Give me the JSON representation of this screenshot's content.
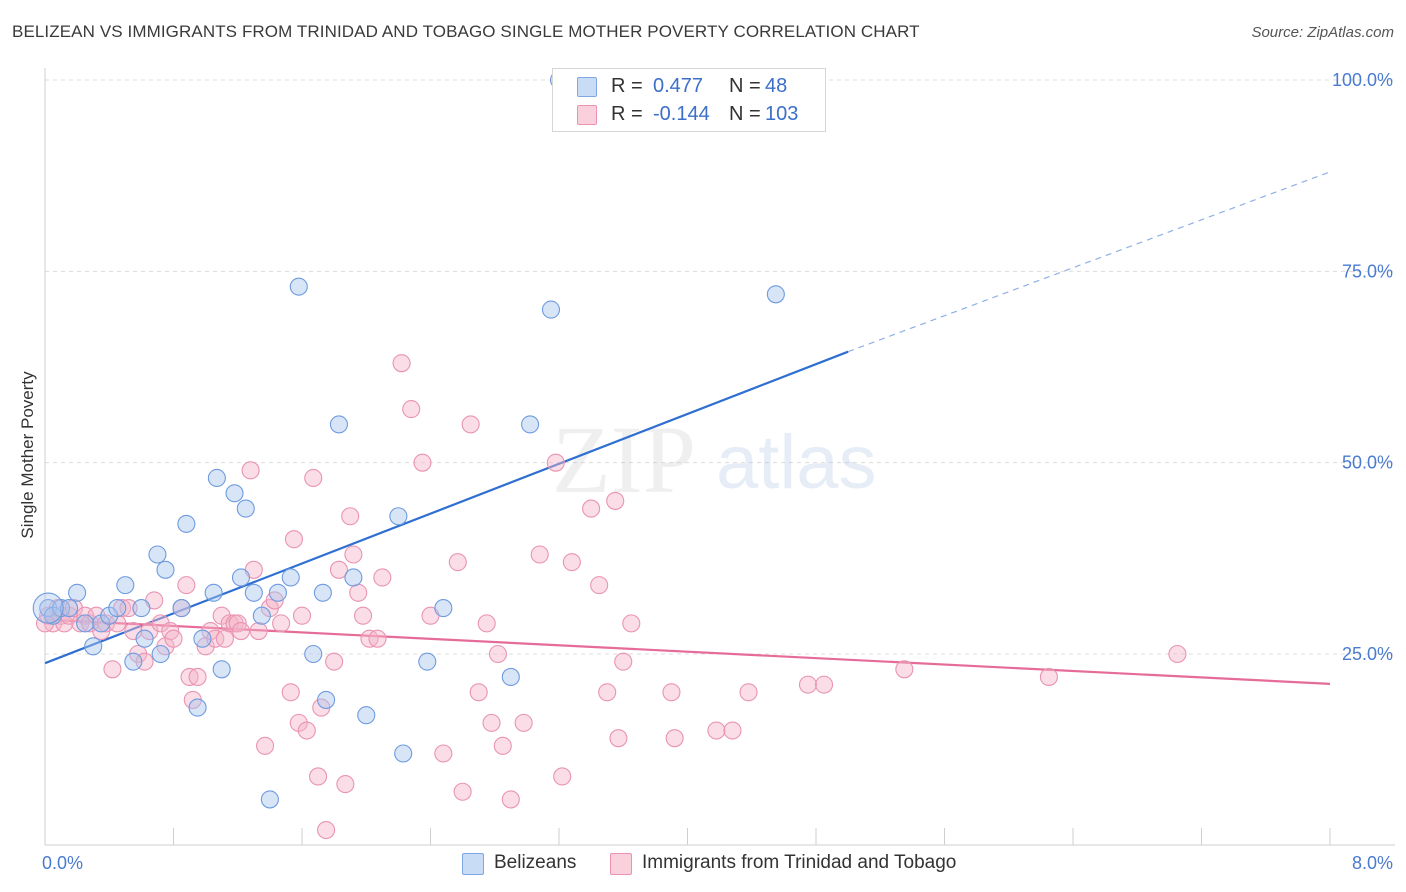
{
  "title": "BELIZEAN VS IMMIGRANTS FROM TRINIDAD AND TOBAGO SINGLE MOTHER POVERTY CORRELATION CHART",
  "source": "Source: ZipAtlas.com",
  "watermark": {
    "zip": "ZIP",
    "atlas": "atlas"
  },
  "legend": {
    "rows": [
      {
        "r_label": "R =",
        "r_value": "0.477",
        "n_label": "N =",
        "n_value": "48",
        "color": "#a9c6ee"
      },
      {
        "r_label": "R =",
        "r_value": "-0.144",
        "n_label": "N =",
        "n_value": "103",
        "color": "#f5b3c8"
      }
    ]
  },
  "bottom_legend": [
    {
      "label": "Belizeans",
      "color": "#a9c6ee"
    },
    {
      "label": "Immigrants from Trinidad and Tobago",
      "color": "#f5b3c8"
    }
  ],
  "chart_data": {
    "type": "scatter",
    "title": "BELIZEAN VS IMMIGRANTS FROM TRINIDAD AND TOBAGO SINGLE MOTHER POVERTY CORRELATION CHART",
    "xlabel": "",
    "ylabel": "Single Mother Poverty",
    "xlim": [
      0,
      8
    ],
    "ylim": [
      0,
      100
    ],
    "x_tick_labels": [
      "0.0%",
      "8.0%"
    ],
    "y_tick_labels": [
      "25.0%",
      "50.0%",
      "75.0%",
      "100.0%"
    ],
    "y_ticks": [
      25,
      50,
      75,
      100
    ],
    "grid": true,
    "legend_position": "top-center",
    "series": [
      {
        "name": "Belizeans",
        "color": "#6fa0e0",
        "fill": "#a9c6ee",
        "trend": {
          "x": [
            0,
            5.0
          ],
          "y": [
            23.8,
            64.5
          ],
          "dashed_to": [
            8,
            88
          ]
        },
        "points": [
          [
            0.02,
            31
          ],
          [
            0.05,
            30
          ],
          [
            0.1,
            31
          ],
          [
            0.15,
            31
          ],
          [
            0.2,
            33
          ],
          [
            0.25,
            29
          ],
          [
            0.3,
            26
          ],
          [
            0.35,
            29
          ],
          [
            0.4,
            30
          ],
          [
            0.45,
            31
          ],
          [
            0.5,
            34
          ],
          [
            0.55,
            24
          ],
          [
            0.6,
            31
          ],
          [
            0.62,
            27
          ],
          [
            0.7,
            38
          ],
          [
            0.72,
            25
          ],
          [
            0.75,
            36
          ],
          [
            0.85,
            31
          ],
          [
            0.88,
            42
          ],
          [
            0.95,
            18
          ],
          [
            0.98,
            27
          ],
          [
            1.05,
            33
          ],
          [
            1.07,
            48
          ],
          [
            1.1,
            23
          ],
          [
            1.18,
            46
          ],
          [
            1.22,
            35
          ],
          [
            1.25,
            44
          ],
          [
            1.3,
            33
          ],
          [
            1.35,
            30
          ],
          [
            1.4,
            6
          ],
          [
            1.45,
            33
          ],
          [
            1.53,
            35
          ],
          [
            1.58,
            73
          ],
          [
            1.67,
            25
          ],
          [
            1.73,
            33
          ],
          [
            1.75,
            19
          ],
          [
            1.83,
            55
          ],
          [
            1.92,
            35
          ],
          [
            2.0,
            17
          ],
          [
            2.2,
            43
          ],
          [
            2.23,
            12
          ],
          [
            2.38,
            24
          ],
          [
            2.48,
            31
          ],
          [
            2.9,
            22
          ],
          [
            3.02,
            55
          ],
          [
            3.15,
            70
          ],
          [
            4.55,
            72
          ],
          [
            3.2,
            100
          ]
        ]
      },
      {
        "name": "Immigrants from Trinidad and Tobago",
        "color": "#e97fa3",
        "fill": "#f5b3c8",
        "trend": {
          "x": [
            0,
            8
          ],
          "y": [
            29.5,
            21.1
          ]
        },
        "points": [
          [
            0.02,
            30
          ],
          [
            0.05,
            29
          ],
          [
            0.08,
            31
          ],
          [
            0.1,
            30
          ],
          [
            0.12,
            29
          ],
          [
            0.15,
            30
          ],
          [
            0.18,
            31
          ],
          [
            0.22,
            29
          ],
          [
            0.25,
            30
          ],
          [
            0.28,
            29
          ],
          [
            0.32,
            30
          ],
          [
            0.35,
            28
          ],
          [
            0.38,
            29
          ],
          [
            0.42,
            23
          ],
          [
            0.45,
            29
          ],
          [
            0.48,
            31
          ],
          [
            0.52,
            31
          ],
          [
            0.55,
            28
          ],
          [
            0.58,
            25
          ],
          [
            0.62,
            24
          ],
          [
            0.65,
            28
          ],
          [
            0.68,
            32
          ],
          [
            0.72,
            29
          ],
          [
            0.75,
            26
          ],
          [
            0.78,
            28
          ],
          [
            0.8,
            27
          ],
          [
            0.85,
            31
          ],
          [
            0.88,
            34
          ],
          [
            0.9,
            22
          ],
          [
            0.92,
            19
          ],
          [
            0.95,
            22
          ],
          [
            1.0,
            26
          ],
          [
            1.03,
            28
          ],
          [
            1.06,
            27
          ],
          [
            1.1,
            30
          ],
          [
            1.12,
            27
          ],
          [
            1.15,
            29
          ],
          [
            1.18,
            29
          ],
          [
            1.2,
            29
          ],
          [
            1.22,
            28
          ],
          [
            1.28,
            49
          ],
          [
            1.3,
            36
          ],
          [
            1.33,
            28
          ],
          [
            1.37,
            13
          ],
          [
            1.4,
            31
          ],
          [
            1.43,
            32
          ],
          [
            1.47,
            29
          ],
          [
            1.53,
            20
          ],
          [
            1.55,
            40
          ],
          [
            1.58,
            16
          ],
          [
            1.6,
            30
          ],
          [
            1.63,
            15
          ],
          [
            1.67,
            48
          ],
          [
            1.7,
            9
          ],
          [
            1.72,
            18
          ],
          [
            1.75,
            2
          ],
          [
            1.8,
            24
          ],
          [
            1.83,
            36
          ],
          [
            1.87,
            8
          ],
          [
            1.9,
            43
          ],
          [
            1.92,
            38
          ],
          [
            1.95,
            33
          ],
          [
            1.98,
            30
          ],
          [
            2.02,
            27
          ],
          [
            2.07,
            27
          ],
          [
            2.1,
            35
          ],
          [
            2.22,
            63
          ],
          [
            2.28,
            57
          ],
          [
            2.35,
            50
          ],
          [
            2.4,
            30
          ],
          [
            2.48,
            12
          ],
          [
            2.57,
            37
          ],
          [
            2.6,
            7
          ],
          [
            2.65,
            55
          ],
          [
            2.7,
            20
          ],
          [
            2.75,
            29
          ],
          [
            2.78,
            16
          ],
          [
            2.82,
            25
          ],
          [
            2.85,
            13
          ],
          [
            2.9,
            6
          ],
          [
            2.98,
            16
          ],
          [
            3.08,
            38
          ],
          [
            3.18,
            50
          ],
          [
            3.22,
            9
          ],
          [
            3.28,
            37
          ],
          [
            3.4,
            44
          ],
          [
            3.45,
            34
          ],
          [
            3.5,
            20
          ],
          [
            3.55,
            45
          ],
          [
            3.57,
            14
          ],
          [
            3.6,
            24
          ],
          [
            3.65,
            29
          ],
          [
            3.9,
            20
          ],
          [
            3.92,
            14
          ],
          [
            4.18,
            15
          ],
          [
            4.28,
            15
          ],
          [
            4.38,
            20
          ],
          [
            4.75,
            21
          ],
          [
            4.85,
            21
          ],
          [
            5.35,
            23
          ],
          [
            6.25,
            22
          ],
          [
            7.05,
            25
          ],
          [
            0.0,
            29
          ]
        ]
      }
    ]
  }
}
